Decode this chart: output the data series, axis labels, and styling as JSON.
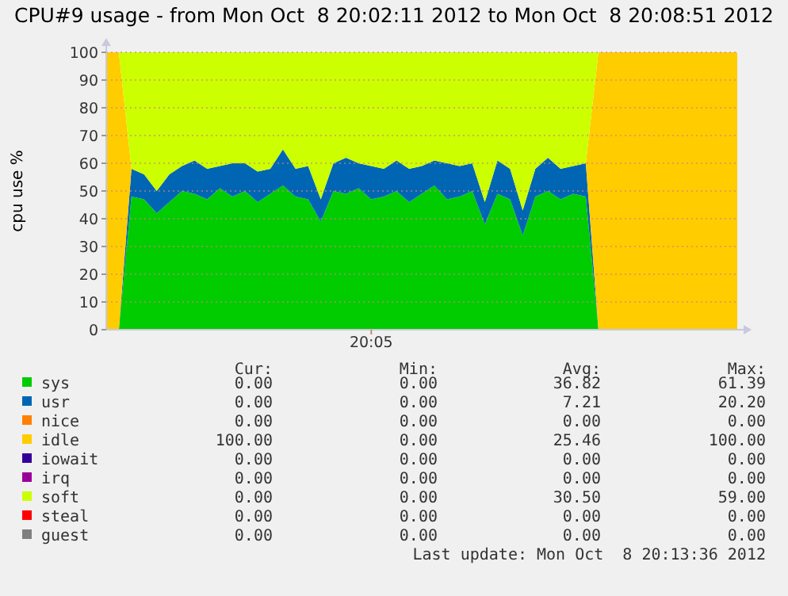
{
  "chart_data": {
    "type": "area",
    "stacked": true,
    "title": "CPU#9 usage - from Mon Oct  8 20:02:11 2012 to Mon Oct  8 20:08:51 2012",
    "ylabel": "cpu use %",
    "categories": [
      null,
      null,
      null,
      null,
      null,
      null,
      null,
      null,
      null,
      null,
      null,
      null,
      null,
      null,
      null,
      null,
      null,
      null,
      null,
      null,
      null,
      "20:05",
      null,
      null,
      null,
      null,
      null,
      null,
      null,
      null,
      null,
      null,
      null,
      null,
      null,
      null,
      null,
      null,
      null,
      null,
      null,
      null,
      null,
      null,
      null,
      null,
      null,
      null,
      null,
      null,
      null
    ],
    "ylim": [
      0,
      100
    ],
    "yticks": [
      0,
      10,
      20,
      30,
      40,
      50,
      60,
      70,
      80,
      90,
      100
    ],
    "grid": "y",
    "legend": "bottom",
    "series": [
      {
        "name": "sys",
        "color": "#00cc00",
        "values": [
          0,
          0,
          48,
          47,
          42,
          46,
          50,
          49,
          47,
          51,
          48,
          50,
          46,
          49,
          52,
          48,
          47,
          39,
          50,
          49,
          51,
          47,
          48,
          50,
          46,
          49,
          52,
          47,
          48,
          50,
          38,
          49,
          47,
          34,
          48,
          50,
          47,
          49,
          48,
          0,
          0,
          0,
          0,
          0,
          0,
          0,
          0,
          0,
          0,
          0,
          0
        ]
      },
      {
        "name": "usr",
        "color": "#0066b3",
        "values": [
          0,
          0,
          10,
          9,
          8,
          10,
          9,
          12,
          11,
          8,
          12,
          10,
          11,
          9,
          13,
          10,
          12,
          8,
          10,
          13,
          9,
          12,
          10,
          11,
          12,
          10,
          9,
          13,
          11,
          10,
          8,
          12,
          11,
          9,
          10,
          12,
          11,
          10,
          12,
          0,
          0,
          0,
          0,
          0,
          0,
          0,
          0,
          0,
          0,
          0,
          0
        ]
      },
      {
        "name": "nice",
        "color": "#ff8000",
        "values": [
          null,
          null,
          null,
          null,
          null,
          null,
          null,
          null,
          null,
          null,
          null,
          null,
          null,
          null,
          null,
          null,
          null,
          null,
          null,
          null,
          null,
          null,
          null,
          null,
          null,
          null,
          null,
          null,
          null,
          null,
          null,
          null,
          null,
          null,
          null,
          null,
          null,
          null,
          null,
          null,
          null,
          null,
          null,
          null,
          null,
          null,
          null,
          null,
          null,
          null,
          null
        ]
      },
      {
        "name": "idle",
        "color": "#ffcc00",
        "values": [
          100,
          100,
          0,
          0,
          0,
          0,
          0,
          0,
          0,
          0,
          0,
          0,
          0,
          0,
          0,
          0,
          0,
          0,
          0,
          0,
          0,
          0,
          0,
          0,
          0,
          0,
          0,
          0,
          0,
          0,
          0,
          0,
          0,
          0,
          0,
          0,
          0,
          0,
          0,
          100,
          100,
          100,
          100,
          100,
          100,
          100,
          100,
          100,
          100,
          100,
          100
        ]
      },
      {
        "name": "iowait",
        "color": "#330099",
        "values": [
          null,
          null,
          null,
          null,
          null,
          null,
          null,
          null,
          null,
          null,
          null,
          null,
          null,
          null,
          null,
          null,
          null,
          null,
          null,
          null,
          null,
          null,
          null,
          null,
          null,
          null,
          null,
          null,
          null,
          null,
          null,
          null,
          null,
          null,
          null,
          null,
          null,
          null,
          null,
          null,
          null,
          null,
          null,
          null,
          null,
          null,
          null,
          null,
          null,
          null,
          null
        ]
      },
      {
        "name": "irq",
        "color": "#990099",
        "values": [
          null,
          null,
          null,
          null,
          null,
          null,
          null,
          null,
          null,
          null,
          null,
          null,
          null,
          null,
          null,
          null,
          null,
          null,
          null,
          null,
          null,
          null,
          null,
          null,
          null,
          null,
          null,
          null,
          null,
          null,
          null,
          null,
          null,
          null,
          null,
          null,
          null,
          null,
          null,
          null,
          null,
          null,
          null,
          null,
          null,
          null,
          null,
          null,
          null,
          null,
          null
        ]
      },
      {
        "name": "soft",
        "color": "#ccff00",
        "values": [
          0,
          0,
          42,
          44,
          50,
          44,
          41,
          39,
          42,
          41,
          40,
          40,
          43,
          42,
          35,
          42,
          41,
          53,
          40,
          38,
          40,
          41,
          42,
          39,
          42,
          41,
          39,
          40,
          41,
          40,
          54,
          39,
          42,
          57,
          42,
          38,
          42,
          41,
          40,
          0,
          0,
          0,
          0,
          0,
          0,
          0,
          0,
          0,
          0,
          0,
          0
        ]
      },
      {
        "name": "steal",
        "color": "#ff0000",
        "values": [
          null,
          null,
          null,
          null,
          null,
          null,
          null,
          null,
          null,
          null,
          null,
          null,
          null,
          null,
          null,
          null,
          null,
          null,
          null,
          null,
          null,
          null,
          null,
          null,
          null,
          null,
          null,
          null,
          null,
          null,
          null,
          null,
          null,
          null,
          null,
          null,
          null,
          null,
          null,
          null,
          null,
          null,
          null,
          null,
          null,
          null,
          null,
          null,
          null,
          null,
          null
        ]
      },
      {
        "name": "guest",
        "color": "#808080",
        "values": [
          null,
          null,
          null,
          null,
          null,
          null,
          null,
          null,
          null,
          null,
          null,
          null,
          null,
          null,
          null,
          null,
          null,
          null,
          null,
          null,
          null,
          null,
          null,
          null,
          null,
          null,
          null,
          null,
          null,
          null,
          null,
          null,
          null,
          null,
          null,
          null,
          null,
          null,
          null,
          null,
          null,
          null,
          null,
          null,
          null,
          null,
          null,
          null,
          null,
          null,
          null
        ]
      }
    ],
    "annotations": [
      "Cur:",
      "Min:",
      "Avg:",
      "Max:",
      "0.00",
      "0.00",
      "36.82",
      "61.39",
      "0.00",
      "0.00",
      "7.21",
      "20.20",
      "0.00",
      "0.00",
      "0.00",
      "0.00",
      "100.00",
      "0.00",
      "25.46",
      "100.00",
      "0.00",
      "0.00",
      "0.00",
      "0.00",
      "0.00",
      "0.00",
      "0.00",
      "0.00",
      "0.00",
      "0.00",
      "30.50",
      "59.00",
      "0.00",
      "0.00",
      "0.00",
      "0.00",
      "0.00",
      "0.00",
      "0.00",
      "0.00",
      "Last update: Mon Oct  8 20:13:36 2012"
    ]
  }
}
